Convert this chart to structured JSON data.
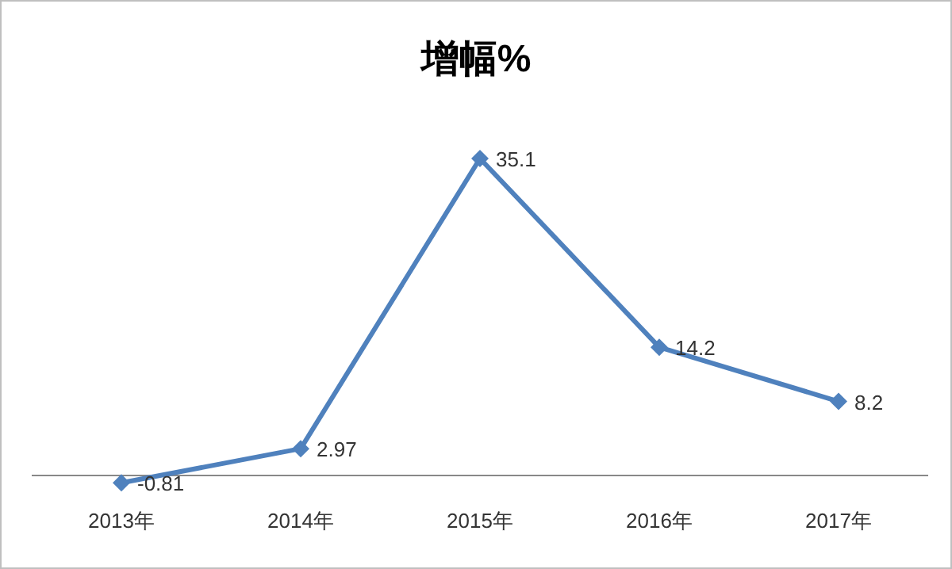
{
  "chart_data": {
    "type": "line",
    "title": "增幅%",
    "categories": [
      "2013年",
      "2014年",
      "2015年",
      "2016年",
      "2017年"
    ],
    "series": [
      {
        "color": "#4f81bd",
        "values": [
          -0.81,
          2.97,
          35.1,
          14.2,
          8.2
        ]
      }
    ],
    "marker": "diamond",
    "line_style": "solid",
    "data_labels": true
  }
}
